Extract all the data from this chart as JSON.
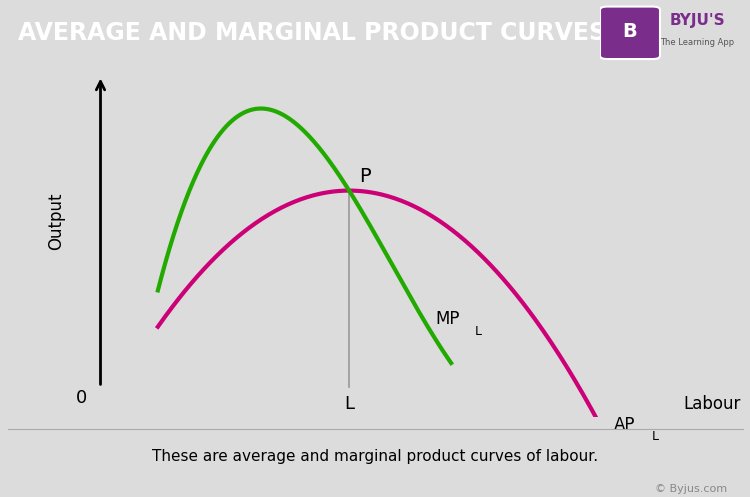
{
  "title": "AVERAGE AND MARGINAL PRODUCT CURVES",
  "title_bg_color": "#8B3A8B",
  "title_text_color": "#FFFFFF",
  "bg_color": "#DCDCDC",
  "plot_bg_color": "#DCDCDC",
  "xlabel": "Labour",
  "ylabel": "Output",
  "origin_label": "0",
  "L_label": "L",
  "P_label": "P",
  "APL_label": "AP",
  "MPL_label": "MP",
  "APL_subscript": "L",
  "MPL_subscript": "L",
  "ap_color": "#CC0077",
  "mp_color": "#22AA00",
  "line_width": 3.0,
  "vline_color": "#999999",
  "caption": "These are average and marginal product curves of labour.",
  "copyright": "© Byjus.com",
  "byju_bg_color": "#7B2D8B",
  "byju_text": "BYJU'S",
  "byju_subtext": "The Learning App"
}
